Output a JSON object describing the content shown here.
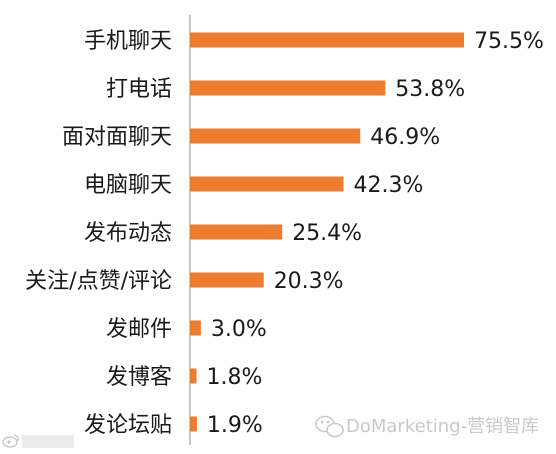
{
  "chart_data": {
    "type": "bar",
    "orientation": "horizontal",
    "categories": [
      "手机聊天",
      "打电话",
      "面对面聊天",
      "电脑聊天",
      "发布动态",
      "关注/点赞/评论",
      "发邮件",
      "发博客",
      "发论坛贴"
    ],
    "values": [
      75.5,
      53.8,
      46.9,
      42.3,
      25.4,
      20.3,
      3.0,
      1.8,
      1.9
    ],
    "value_labels": [
      "75.5%",
      "53.8%",
      "46.9%",
      "42.3%",
      "25.4%",
      "20.3%",
      "3.0%",
      "1.8%",
      "1.9%"
    ],
    "xlim": [
      0,
      100
    ],
    "grid": false,
    "bar_color": "#ed7d31"
  },
  "watermark": {
    "text": "DoMarketing-营销智库",
    "icon": "wechat-icon",
    "corner_logo": "weibo-icon"
  }
}
